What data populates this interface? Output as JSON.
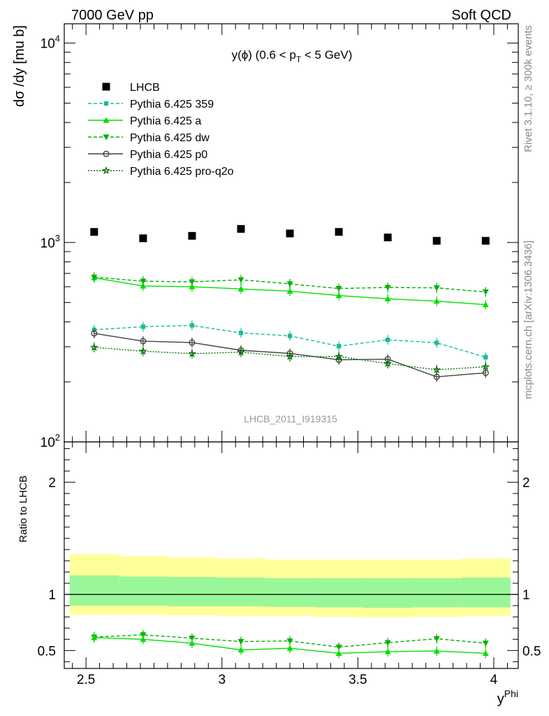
{
  "header": {
    "left": "7000 GeV pp",
    "right": "Soft QCD"
  },
  "side_labels": {
    "rivet": "Rivet 3.1.10, ≥ 300k events",
    "mcplots": "mcplots.cern.ch [arXiv:1306.3436]"
  },
  "watermark": "LHCB_2011_I919315",
  "chart_data": [
    {
      "type": "scatter",
      "panel": "main",
      "title": "y(ϕ) (0.6 < pT < 5 GeV)",
      "title_parts": {
        "main": "y(ϕ) (0.6 < p",
        "sub": "T",
        "tail": " < 5 GeV)"
      },
      "ylabel": "dσ /dy [mu b]",
      "yscale": "log",
      "ylim": [
        100,
        12500
      ],
      "xlim": [
        2.42,
        4.09
      ],
      "y_ticks": [
        {
          "v": 100,
          "label": "10",
          "exp": "2"
        },
        {
          "v": 1000,
          "label": "10",
          "exp": "3"
        },
        {
          "v": 10000,
          "label": "10",
          "exp": "4"
        }
      ],
      "x": [
        2.53,
        2.71,
        2.89,
        3.07,
        3.25,
        3.43,
        3.61,
        3.79,
        3.97
      ],
      "legend_position": "top-left",
      "series": [
        {
          "name": "LHCB",
          "color": "#000000",
          "marker": "square",
          "line": "none",
          "values": [
            1130,
            1050,
            1080,
            1170,
            1110,
            1130,
            1060,
            1020,
            1020
          ]
        },
        {
          "name": "Pythia 6.425 359",
          "color": "#1abc9c",
          "marker": "small-square",
          "line": "dashed",
          "values": [
            365,
            378,
            384,
            352,
            340,
            302,
            325,
            314,
            266
          ]
        },
        {
          "name": "Pythia 6.425 a",
          "color": "#00e000",
          "marker": "triangle-up",
          "line": "solid",
          "values": [
            665,
            605,
            600,
            585,
            570,
            542,
            522,
            508,
            488
          ]
        },
        {
          "name": "Pythia 6.425 dw",
          "color": "#00b000",
          "marker": "triangle-down",
          "line": "dashed",
          "values": [
            670,
            640,
            635,
            650,
            620,
            588,
            595,
            592,
            565
          ]
        },
        {
          "name": "Pythia 6.425 p0",
          "color": "#404040",
          "marker": "open-circle",
          "line": "solid",
          "values": [
            350,
            320,
            315,
            288,
            278,
            258,
            260,
            212,
            222
          ]
        },
        {
          "name": "Pythia 6.425 pro-q2o",
          "color": "#007000",
          "marker": "open-star",
          "line": "dotted",
          "values": [
            298,
            285,
            277,
            282,
            268,
            268,
            247,
            230,
            238
          ]
        }
      ]
    },
    {
      "type": "line",
      "panel": "ratio",
      "ylabel": "Ratio to LHCB",
      "xlabel": "y",
      "xlabel_sup": "Phi",
      "ylim": [
        0.34,
        2.36
      ],
      "xlim": [
        2.42,
        4.09
      ],
      "x_ticks": [
        {
          "v": 2.5,
          "label": "2.5"
        },
        {
          "v": 3,
          "label": "3"
        },
        {
          "v": 3.5,
          "label": "3.5"
        },
        {
          "v": 4,
          "label": "4"
        }
      ],
      "y_ticks": [
        {
          "v": 0.5,
          "label": "0.5"
        },
        {
          "v": 1,
          "label": "1"
        },
        {
          "v": 2,
          "label": "2"
        }
      ],
      "bands": {
        "edges": [
          2.44,
          2.62,
          2.8,
          2.98,
          3.16,
          3.34,
          3.52,
          3.7,
          3.88,
          4.06
        ],
        "yellow": [
          [
            0.82,
            1.36
          ],
          [
            0.82,
            1.34
          ],
          [
            0.815,
            1.33
          ],
          [
            0.81,
            1.32
          ],
          [
            0.81,
            1.31
          ],
          [
            0.8,
            1.31
          ],
          [
            0.795,
            1.31
          ],
          [
            0.8,
            1.31
          ],
          [
            0.81,
            1.32
          ]
        ],
        "green": [
          [
            0.9,
            1.17
          ],
          [
            0.9,
            1.16
          ],
          [
            0.895,
            1.155
          ],
          [
            0.895,
            1.15
          ],
          [
            0.89,
            1.145
          ],
          [
            0.885,
            1.145
          ],
          [
            0.88,
            1.145
          ],
          [
            0.885,
            1.145
          ],
          [
            0.885,
            1.15
          ]
        ],
        "yellow_color": "#ffff99",
        "green_color": "#99f799"
      },
      "x": [
        2.53,
        2.71,
        2.89,
        3.07,
        3.25,
        3.43,
        3.61,
        3.79,
        3.97
      ],
      "series": [
        {
          "name": "Pythia 6.425 dw",
          "color": "#00b000",
          "marker": "triangle-down",
          "line": "dashed",
          "values": [
            0.62,
            0.64,
            0.61,
            0.58,
            0.585,
            0.53,
            0.57,
            0.605,
            0.565
          ]
        },
        {
          "name": "Pythia 6.425 a",
          "color": "#00e000",
          "marker": "triangle-up",
          "line": "solid",
          "values": [
            0.615,
            0.6,
            0.565,
            0.505,
            0.52,
            0.475,
            0.49,
            0.495,
            0.475
          ]
        }
      ]
    }
  ]
}
